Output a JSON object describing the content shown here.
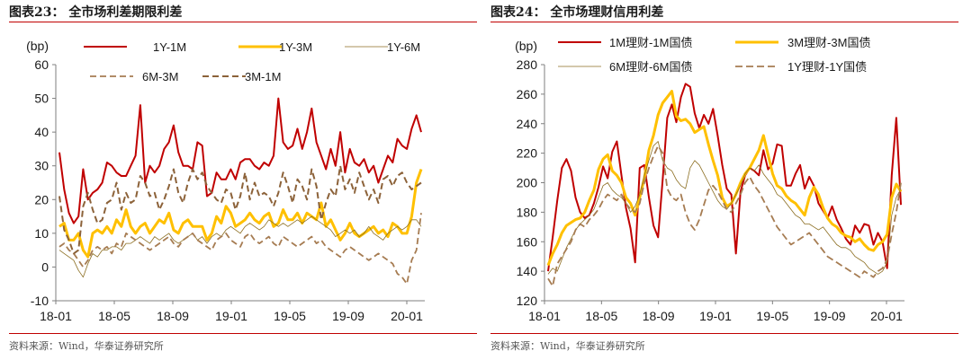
{
  "source_text": "资料来源：Wind，华泰证券研究所",
  "charts": [
    {
      "title": "图表23：  全市场利差期限利差",
      "chart_data": {
        "type": "line",
        "ylabel": "(bp)",
        "ylim": [
          -10,
          60
        ],
        "y_ticks": [
          "-10",
          "0",
          "10",
          "20",
          "30",
          "40",
          "50",
          "60"
        ],
        "x_tick_labels": [
          "18-01",
          "18-05",
          "18-09",
          "19-01",
          "19-05",
          "19-09",
          "20-01"
        ],
        "legend_rows": [
          [
            "1Y-1M",
            "1Y-3M",
            "1Y-6M"
          ],
          [
            "6M-3M",
            "3M-1M"
          ]
        ],
        "series": [
          {
            "name": "1Y-1M",
            "color": "#c00000",
            "values": [
              34,
              23,
              16,
              13,
              15,
              29,
              20,
              22,
              23,
              25,
              31,
              30,
              28,
              27,
              27,
              30,
              33,
              48,
              25,
              30,
              28,
              30,
              35,
              37,
              42,
              34,
              30,
              30,
              29,
              37,
              36,
              21,
              22,
              28,
              26,
              26,
              29,
              26,
              31,
              32,
              32,
              30,
              29,
              31,
              30,
              33,
              50,
              37,
              35,
              36,
              41,
              35,
              40,
              47,
              37,
              33,
              29,
              35,
              30,
              40,
              28,
              35,
              31,
              30,
              32,
              28,
              30,
              25,
              29,
              33,
              31,
              38,
              36,
              35,
              41,
              45,
              40
            ]
          },
          {
            "name": "1Y-3M",
            "color": "#ffc000",
            "values": [
              12,
              13,
              8,
              8,
              10,
              5,
              3,
              10,
              11,
              10,
              12,
              10,
              14,
              12,
              17,
              12,
              10,
              12,
              13,
              10,
              12,
              14,
              13,
              16,
              11,
              10,
              13,
              14,
              12,
              12,
              12,
              8,
              10,
              15,
              13,
              18,
              16,
              12,
              13,
              14,
              16,
              14,
              13,
              15,
              16,
              12,
              13,
              17,
              14,
              14,
              16,
              13,
              16,
              15,
              14,
              19,
              12,
              14,
              11,
              8,
              10,
              13,
              10,
              9,
              10,
              11,
              12,
              10,
              11,
              9,
              13,
              12,
              10,
              10,
              15,
              25,
              29
            ]
          },
          {
            "name": "1Y-6M",
            "color": "#8b6d20",
            "values": [
              5,
              4,
              3,
              2,
              -1,
              -3,
              1,
              4,
              3,
              5,
              5,
              6,
              6,
              5,
              7,
              7,
              8,
              9,
              8,
              7,
              9,
              8,
              9,
              10,
              8,
              7,
              8,
              9,
              10,
              8,
              9,
              7,
              9,
              10,
              9,
              11,
              12,
              11,
              10,
              12,
              13,
              12,
              11,
              12,
              14,
              13,
              12,
              13,
              12,
              13,
              14,
              13,
              14,
              15,
              14,
              13,
              12,
              11,
              9,
              10,
              11,
              10,
              11,
              9,
              10,
              12,
              10,
              9,
              8,
              10,
              11,
              12,
              11,
              12,
              14,
              14,
              12
            ]
          },
          {
            "name": "6M-3M",
            "color": "#a67c52",
            "values": [
              6,
              7,
              5,
              4,
              2,
              0,
              2,
              5,
              6,
              5,
              6,
              4,
              7,
              6,
              10,
              9,
              8,
              7,
              6,
              5,
              6,
              7,
              8,
              9,
              7,
              6,
              8,
              9,
              10,
              8,
              7,
              6,
              5,
              8,
              9,
              10,
              8,
              7,
              6,
              9,
              10,
              8,
              7,
              8,
              9,
              7,
              6,
              9,
              8,
              7,
              6,
              7,
              8,
              9,
              7,
              8,
              6,
              5,
              4,
              3,
              5,
              6,
              5,
              4,
              3,
              2,
              3,
              4,
              3,
              2,
              1,
              -2,
              -3,
              -5,
              2,
              5,
              16
            ]
          },
          {
            "name": "3M-1M",
            "color": "#8c6239",
            "values": [
              21,
              11,
              8,
              4,
              5,
              18,
              22,
              17,
              13,
              14,
              19,
              20,
              25,
              17,
              22,
              19,
              20,
              27,
              25,
              21,
              22,
              17,
              20,
              24,
              29,
              22,
              19,
              25,
              29,
              26,
              28,
              24,
              22,
              20,
              19,
              23,
              22,
              17,
              21,
              28,
              20,
              25,
              21,
              22,
              21,
              18,
              22,
              28,
              24,
              19,
              26,
              24,
              20,
              29,
              24,
              14,
              19,
              23,
              21,
              30,
              23,
              26,
              22,
              28,
              24,
              20,
              23,
              19,
              26,
              27,
              24,
              27,
              28,
              25,
              23,
              24,
              25
            ]
          }
        ]
      }
    },
    {
      "title": "图表24：  全市场理财信用利差",
      "chart_data": {
        "type": "line",
        "ylabel": "(bp)",
        "ylim": [
          120,
          280
        ],
        "y_ticks": [
          "120",
          "140",
          "160",
          "180",
          "200",
          "220",
          "240",
          "260",
          "280"
        ],
        "x_tick_labels": [
          "18-01",
          "18-05",
          "18-09",
          "19-01",
          "19-05",
          "19-09",
          "20-01"
        ],
        "legend_rows": [
          [
            "1M理财-1M国债",
            "3M理财-3M国债"
          ],
          [
            "6M理财-6M国债",
            "1Y理财-1Y国债"
          ]
        ],
        "series": [
          {
            "name": "1M理财-1M国债",
            "color": "#c00000",
            "values": [
              140,
              163,
              188,
              210,
              216,
              208,
              190,
              180,
              176,
              178,
              186,
              197,
              211,
              203,
              221,
              228,
              205,
              183,
              169,
              146,
              210,
              212,
              190,
              171,
              163,
              202,
              244,
              253,
              241,
              258,
              267,
              265,
              247,
              237,
              246,
              240,
              250,
              232,
              212,
              196,
              192,
              152,
              194,
              205,
              210,
              208,
              205,
              222,
              209,
              213,
              226,
              225,
              198,
              198,
              206,
              212,
              196,
              204,
              198,
              186,
              181,
              176,
              184,
              175,
              169,
              162,
              158,
              171,
              166,
              172,
              171,
              158,
              166,
              160,
              142,
              205,
              244,
              185
            ]
          },
          {
            "name": "3M理财-3M国债",
            "color": "#ffc000",
            "values": [
              144,
              152,
              158,
              166,
              171,
              173,
              175,
              176,
              180,
              188,
              195,
              209,
              216,
              219,
              208,
              205,
              200,
              190,
              186,
              178,
              190,
              203,
              222,
              232,
              246,
              254,
              258,
              262,
              245,
              242,
              243,
              240,
              234,
              236,
              238,
              226,
              215,
              205,
              190,
              184,
              186,
              192,
              200,
              206,
              210,
              216,
              222,
              232,
              219,
              206,
              198,
              196,
              191,
              188,
              186,
              182,
              178,
              190,
              197,
              192,
              183,
              176,
              172,
              170,
              166,
              164,
              163,
              160,
              162,
              158,
              155,
              154,
              158,
              160,
              165,
              190,
              199,
              194
            ]
          },
          {
            "name": "6M理财-6M国债",
            "color": "#8b6d20",
            "values": [
              138,
              142,
              140,
              148,
              156,
              162,
              168,
              172,
              175,
              178,
              182,
              190,
              198,
              200,
              195,
              192,
              190,
              186,
              180,
              184,
              192,
              205,
              215,
              225,
              228,
              215,
              210,
              208,
              202,
              198,
              196,
              210,
              215,
              212,
              206,
              200,
              194,
              188,
              184,
              182,
              186,
              192,
              198,
              206,
              210,
              208,
              212,
              206,
              202,
              198,
              192,
              190,
              186,
              182,
              178,
              176,
              172,
              172,
              170,
              168,
              170,
              166,
              162,
              158,
              156,
              156,
              154,
              150,
              148,
              146,
              142,
              140,
              138,
              140,
              146,
              178,
              190,
              196
            ]
          },
          {
            "name": "1Y理财-1Y国债",
            "color": "#a67c52",
            "values": [
              135,
              130,
              145,
              150,
              155,
              160,
              168,
              172,
              170,
              175,
              178,
              182,
              188,
              192,
              190,
              188,
              192,
              186,
              182,
              180,
              186,
              200,
              210,
              218,
              225,
              220,
              196,
              190,
              188,
              192,
              180,
              172,
              168,
              175,
              185,
              195,
              198,
              194,
              188,
              182,
              180,
              186,
              192,
              200,
              204,
              198,
              194,
              188,
              182,
              176,
              170,
              166,
              162,
              158,
              160,
              162,
              164,
              166,
              162,
              158,
              154,
              150,
              148,
              146,
              144,
              142,
              140,
              138,
              136,
              140,
              138,
              136,
              140,
              142,
              148,
              165,
              180,
              200
            ]
          }
        ]
      }
    }
  ]
}
